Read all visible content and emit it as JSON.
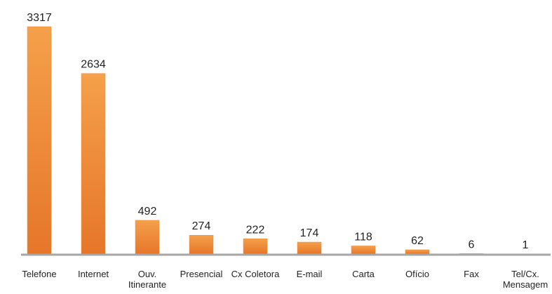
{
  "chart_data": {
    "type": "bar",
    "categories": [
      "Telefone",
      "Internet",
      "Ouv. Itinerante",
      "Presencial",
      "Cx Coletora",
      "E-mail",
      "Carta",
      "Ofício",
      "Fax",
      "Tel/Cx. Mensagem"
    ],
    "values": [
      3317,
      2634,
      492,
      274,
      222,
      174,
      118,
      62,
      6,
      1
    ],
    "color": "#ef8b34"
  }
}
